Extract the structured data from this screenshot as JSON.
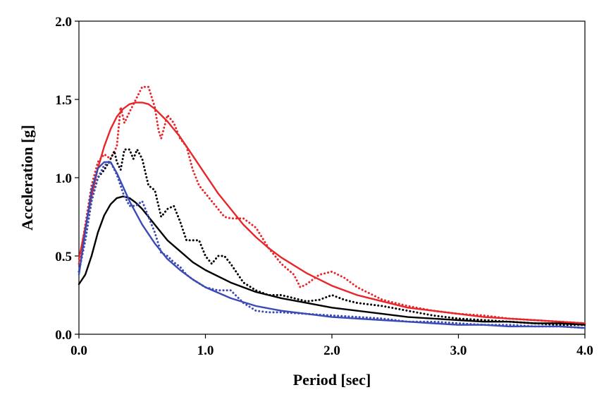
{
  "chart_data": {
    "type": "line",
    "title": "",
    "xlabel": "Period [sec]",
    "ylabel": "Acceleration [g]",
    "xlim": [
      0,
      4.0
    ],
    "ylim": [
      0,
      2.0
    ],
    "xticks": [
      "0.0",
      "1.0",
      "2.0",
      "3.0",
      "4.0"
    ],
    "yticks": [
      "0.0",
      "0.5",
      "1.0",
      "1.5",
      "2.0"
    ],
    "grid": false,
    "legend": "none",
    "series": [
      {
        "color": "#e8262a",
        "style": "solid",
        "x": [
          0,
          0.05,
          0.1,
          0.15,
          0.2,
          0.25,
          0.3,
          0.35,
          0.4,
          0.45,
          0.5,
          0.55,
          0.6,
          0.7,
          0.8,
          0.9,
          1.0,
          1.1,
          1.2,
          1.3,
          1.4,
          1.5,
          1.6,
          1.8,
          2.0,
          2.2,
          2.4,
          2.6,
          2.8,
          3.0,
          3.2,
          3.4,
          3.6,
          3.8,
          4.0
        ],
        "y": [
          0.48,
          0.68,
          0.88,
          1.06,
          1.2,
          1.31,
          1.39,
          1.44,
          1.47,
          1.48,
          1.48,
          1.47,
          1.44,
          1.36,
          1.26,
          1.14,
          1.02,
          0.9,
          0.8,
          0.7,
          0.62,
          0.55,
          0.49,
          0.39,
          0.31,
          0.25,
          0.21,
          0.17,
          0.15,
          0.13,
          0.11,
          0.1,
          0.09,
          0.08,
          0.07
        ]
      },
      {
        "color": "#e8262a",
        "style": "dotted",
        "x": [
          0,
          0.05,
          0.1,
          0.15,
          0.2,
          0.25,
          0.3,
          0.33,
          0.36,
          0.4,
          0.45,
          0.5,
          0.55,
          0.6,
          0.63,
          0.65,
          0.7,
          0.75,
          0.8,
          0.85,
          0.9,
          0.95,
          1.0,
          1.05,
          1.1,
          1.15,
          1.2,
          1.3,
          1.4,
          1.5,
          1.6,
          1.7,
          1.75,
          1.8,
          1.9,
          2.0,
          2.1,
          2.2,
          2.4,
          2.6,
          2.8,
          3.0,
          3.2,
          3.4,
          3.6,
          3.8,
          4.0
        ],
        "y": [
          0.45,
          0.7,
          0.95,
          1.1,
          1.15,
          1.12,
          1.2,
          1.45,
          1.35,
          1.42,
          1.5,
          1.58,
          1.58,
          1.45,
          1.3,
          1.25,
          1.4,
          1.35,
          1.25,
          1.2,
          1.05,
          0.95,
          0.9,
          0.85,
          0.8,
          0.75,
          0.74,
          0.74,
          0.68,
          0.55,
          0.45,
          0.38,
          0.3,
          0.32,
          0.38,
          0.4,
          0.36,
          0.3,
          0.22,
          0.18,
          0.15,
          0.13,
          0.12,
          0.1,
          0.09,
          0.08,
          0.07
        ]
      },
      {
        "color": "#000000",
        "style": "solid",
        "x": [
          0,
          0.05,
          0.1,
          0.15,
          0.2,
          0.25,
          0.3,
          0.35,
          0.4,
          0.45,
          0.5,
          0.6,
          0.7,
          0.8,
          0.9,
          1.0,
          1.2,
          1.4,
          1.6,
          1.8,
          2.0,
          2.2,
          2.4,
          2.6,
          2.8,
          3.0,
          3.2,
          3.4,
          3.6,
          3.8,
          4.0
        ],
        "y": [
          0.32,
          0.38,
          0.5,
          0.65,
          0.76,
          0.83,
          0.87,
          0.88,
          0.87,
          0.84,
          0.8,
          0.7,
          0.6,
          0.53,
          0.46,
          0.41,
          0.33,
          0.27,
          0.23,
          0.2,
          0.17,
          0.15,
          0.13,
          0.11,
          0.1,
          0.09,
          0.08,
          0.08,
          0.07,
          0.07,
          0.06
        ]
      },
      {
        "color": "#000000",
        "style": "dotted",
        "x": [
          0,
          0.05,
          0.1,
          0.15,
          0.2,
          0.25,
          0.28,
          0.3,
          0.33,
          0.36,
          0.4,
          0.43,
          0.46,
          0.5,
          0.55,
          0.6,
          0.65,
          0.7,
          0.75,
          0.8,
          0.85,
          0.9,
          0.95,
          1.0,
          1.05,
          1.1,
          1.15,
          1.2,
          1.3,
          1.4,
          1.5,
          1.6,
          1.7,
          1.8,
          1.9,
          2.0,
          2.1,
          2.2,
          2.4,
          2.6,
          2.8,
          3.0,
          3.2,
          3.4,
          3.6,
          3.8,
          4.0
        ],
        "y": [
          0.4,
          0.6,
          0.85,
          1.0,
          1.05,
          1.12,
          1.17,
          1.1,
          1.05,
          1.18,
          1.18,
          1.12,
          1.18,
          1.12,
          0.95,
          0.92,
          0.75,
          0.8,
          0.82,
          0.72,
          0.6,
          0.6,
          0.6,
          0.5,
          0.45,
          0.5,
          0.5,
          0.45,
          0.33,
          0.28,
          0.25,
          0.25,
          0.23,
          0.21,
          0.22,
          0.25,
          0.22,
          0.2,
          0.18,
          0.15,
          0.12,
          0.1,
          0.09,
          0.08,
          0.07,
          0.06,
          0.06
        ]
      },
      {
        "color": "#3b4bb5",
        "style": "solid",
        "x": [
          0,
          0.05,
          0.1,
          0.15,
          0.2,
          0.25,
          0.3,
          0.35,
          0.4,
          0.5,
          0.6,
          0.7,
          0.8,
          0.9,
          1.0,
          1.2,
          1.4,
          1.6,
          1.8,
          2.0,
          2.2,
          2.4,
          2.6,
          2.8,
          3.0,
          3.2,
          3.4,
          3.6,
          3.8,
          4.0
        ],
        "y": [
          0.38,
          0.66,
          0.92,
          1.06,
          1.1,
          1.1,
          1.03,
          0.94,
          0.85,
          0.7,
          0.58,
          0.48,
          0.41,
          0.35,
          0.3,
          0.23,
          0.18,
          0.15,
          0.13,
          0.11,
          0.1,
          0.09,
          0.08,
          0.07,
          0.06,
          0.06,
          0.05,
          0.05,
          0.05,
          0.04
        ]
      },
      {
        "color": "#3b4bb5",
        "style": "dotted",
        "x": [
          0,
          0.05,
          0.1,
          0.15,
          0.2,
          0.25,
          0.3,
          0.35,
          0.4,
          0.45,
          0.5,
          0.55,
          0.6,
          0.65,
          0.7,
          0.75,
          0.8,
          0.85,
          0.9,
          1.0,
          1.1,
          1.2,
          1.3,
          1.4,
          1.5,
          1.6,
          1.8,
          2.0,
          2.2,
          2.4,
          2.6,
          2.8,
          3.0,
          3.2,
          3.4,
          3.6,
          3.8,
          4.0
        ],
        "y": [
          0.4,
          0.6,
          0.85,
          1.0,
          1.08,
          1.1,
          1.02,
          0.9,
          0.82,
          0.82,
          0.85,
          0.75,
          0.65,
          0.52,
          0.5,
          0.46,
          0.43,
          0.38,
          0.35,
          0.3,
          0.28,
          0.28,
          0.2,
          0.15,
          0.14,
          0.14,
          0.13,
          0.12,
          0.11,
          0.1,
          0.08,
          0.08,
          0.07,
          0.06,
          0.06,
          0.05,
          0.05,
          0.04
        ]
      }
    ]
  }
}
